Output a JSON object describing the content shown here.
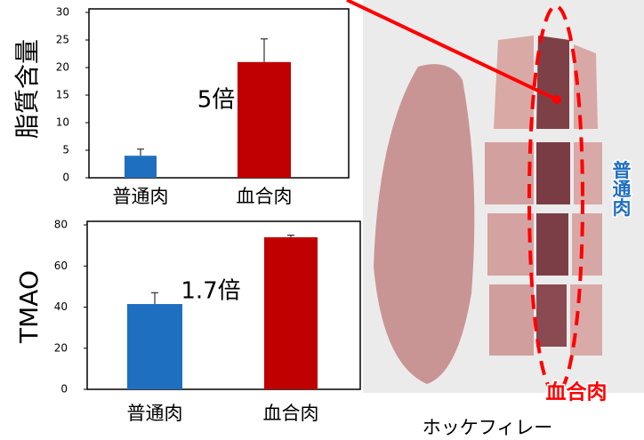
{
  "chart_data": [
    {
      "type": "bar",
      "ylabel": "脂質含量",
      "categories": [
        "普通肉",
        "血合肉"
      ],
      "series": [
        {
          "values": [
            4,
            21
          ],
          "errors": [
            1.2,
            4.2
          ],
          "colors": [
            "#1f6fc1",
            "#c00000"
          ]
        }
      ],
      "ylim": [
        0,
        30
      ],
      "yticks": [
        0,
        5,
        10,
        15,
        20,
        25,
        30
      ],
      "annotation": "5倍"
    },
    {
      "type": "bar",
      "ylabel": "TMAO",
      "categories": [
        "普通肉",
        "血合肉"
      ],
      "series": [
        {
          "values": [
            41.5,
            74
          ],
          "errors": [
            5.5,
            1
          ],
          "colors": [
            "#1f6fc1",
            "#c00000"
          ]
        }
      ],
      "ylim": [
        0,
        80
      ],
      "yticks": [
        0,
        20,
        40,
        60,
        80
      ],
      "annotation": "1.7倍"
    }
  ],
  "photo": {
    "caption": "ホッケフィレー",
    "label_normal": "普通肉",
    "label_dark": "血合肉"
  }
}
